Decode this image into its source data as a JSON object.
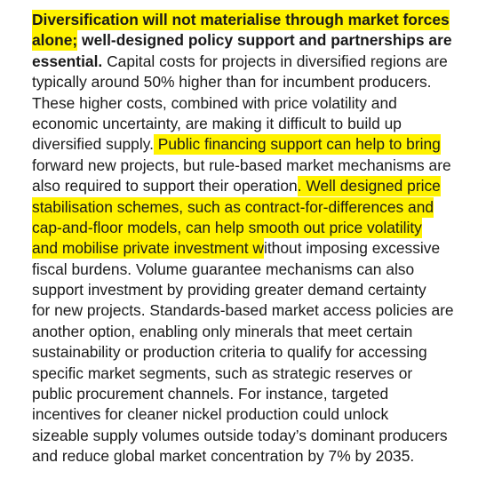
{
  "paragraph": {
    "lines": [
      [
        {
          "text": "Diversification will not materialise through market forces",
          "bold": true,
          "hl": true
        }
      ],
      [
        {
          "text": "alone;",
          "bold": true,
          "hl": true
        },
        {
          "text": " well-designed policy support and partnerships are",
          "bold": true,
          "hl": false
        }
      ],
      [
        {
          "text": "essential.",
          "bold": true,
          "hl": false
        },
        {
          "text": " Capital costs for projects in diversified regions are",
          "bold": false,
          "hl": false
        }
      ],
      [
        {
          "text": "typically around 50% higher than for incumbent producers.",
          "bold": false,
          "hl": false
        }
      ],
      [
        {
          "text": "These higher costs, combined with price volatility and",
          "bold": false,
          "hl": false
        }
      ],
      [
        {
          "text": "economic uncertainty, are making it difficult to build up",
          "bold": false,
          "hl": false
        }
      ],
      [
        {
          "text": "diversified supply.",
          "bold": false,
          "hl": false
        },
        {
          "text": " Public financing support can help to bring",
          "bold": false,
          "hl": true
        }
      ],
      [
        {
          "text": "forward new projects, but rule-based market mechanisms are",
          "bold": false,
          "hl": false
        }
      ],
      [
        {
          "text": "also required to support their operation",
          "bold": false,
          "hl": false
        },
        {
          "text": ". Well designed price",
          "bold": false,
          "hl": true
        }
      ],
      [
        {
          "text": "stabilisation schemes, such as contract-for-differences and",
          "bold": false,
          "hl": true
        }
      ],
      [
        {
          "text": "cap-and-floor models, can help smooth out price volatility",
          "bold": false,
          "hl": true
        }
      ],
      [
        {
          "text": "and mobilise private investment w",
          "bold": false,
          "hl": true
        },
        {
          "text": "ithout imposing excessive",
          "bold": false,
          "hl": false
        }
      ],
      [
        {
          "text": "fiscal burdens. Volume guarantee mechanisms can also",
          "bold": false,
          "hl": false
        }
      ],
      [
        {
          "text": "support investment by providing greater demand certainty",
          "bold": false,
          "hl": false
        }
      ],
      [
        {
          "text": "for new projects. Standards-based market access policies are",
          "bold": false,
          "hl": false
        }
      ],
      [
        {
          "text": "another option, enabling only minerals that meet certain",
          "bold": false,
          "hl": false
        }
      ],
      [
        {
          "text": "sustainability or production criteria to qualify for accessing",
          "bold": false,
          "hl": false
        }
      ],
      [
        {
          "text": "specific market segments, such as strategic reserves or",
          "bold": false,
          "hl": false
        }
      ],
      [
        {
          "text": "public procurement channels. For instance, targeted",
          "bold": false,
          "hl": false
        }
      ],
      [
        {
          "text": "incentives for cleaner nickel production could unlock",
          "bold": false,
          "hl": false
        }
      ],
      [
        {
          "text": "sizeable supply volumes outside today’s dominant producers",
          "bold": false,
          "hl": false
        }
      ],
      [
        {
          "text": "and reduce global market concentration by 7% by 2035.",
          "bold": false,
          "hl": false
        }
      ]
    ]
  },
  "colors": {
    "text": "#1a1a1a",
    "highlight": "#fff200",
    "background": "#ffffff"
  }
}
